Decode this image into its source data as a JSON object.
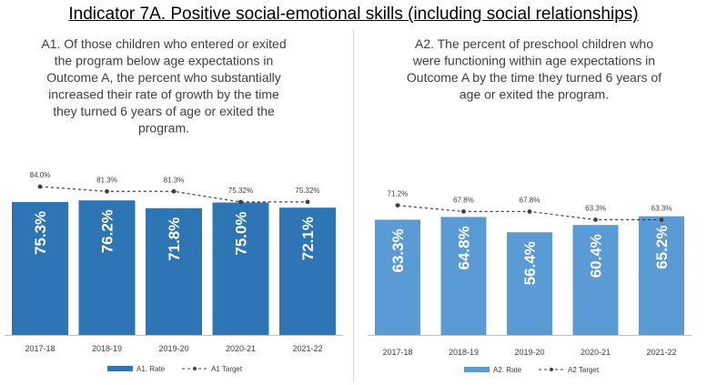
{
  "title": "Indicator 7A. Positive social-emotional skills (including social relationships)",
  "chart_data": [
    {
      "type": "bar",
      "title_lines": [
        "A1. Of those children who entered or exited",
        "the program below age expectations in",
        "Outcome A, the percent who substantially",
        "increased their rate of growth by the time",
        "they turned 6 years of age or exited the",
        "program."
      ],
      "categories": [
        "2017-18",
        "2018-19",
        "2019-20",
        "2020-21",
        "2021-22"
      ],
      "series": [
        {
          "name": "A1. Rate",
          "kind": "bar",
          "values": [
            75.3,
            76.2,
            71.8,
            75.0,
            72.1
          ],
          "labels": [
            "75.3%",
            "76.2%",
            "71.8%",
            "75.0%",
            "72.1%"
          ],
          "color": "#2e75b6"
        },
        {
          "name": "A1 Target",
          "kind": "dashed-line",
          "values": [
            84.0,
            81.3,
            81.3,
            75.32,
            75.32
          ],
          "labels": [
            "84.0%",
            "81.3%",
            "81.3%",
            "75.32%",
            "75.32%"
          ],
          "color": "#404040"
        }
      ],
      "ylim": [
        0,
        100
      ],
      "grid": false,
      "legend": "bottom"
    },
    {
      "type": "bar",
      "title_lines": [
        "A2. The percent of preschool children who",
        "were functioning within age expectations in",
        "Outcome A by the time they turned 6 years of",
        "age or exited the program."
      ],
      "categories": [
        "2017-18",
        "2018-19",
        "2019-20",
        "2020-21",
        "2021-22"
      ],
      "series": [
        {
          "name": "A2. Rate",
          "kind": "bar",
          "values": [
            63.3,
            64.8,
            56.4,
            60.4,
            65.2
          ],
          "labels": [
            "63.3%",
            "64.8%",
            "56.4%",
            "60.4%",
            "65.2%"
          ],
          "color": "#5b9bd5"
        },
        {
          "name": "A2 Target",
          "kind": "dashed-line",
          "values": [
            71.2,
            67.8,
            67.8,
            63.3,
            63.3
          ],
          "labels": [
            "71.2%",
            "67.8%",
            "67.8%",
            "63.3%",
            "63.3%"
          ],
          "color": "#404040"
        }
      ],
      "ylim": [
        0,
        100
      ],
      "grid": false,
      "legend": "bottom"
    }
  ]
}
